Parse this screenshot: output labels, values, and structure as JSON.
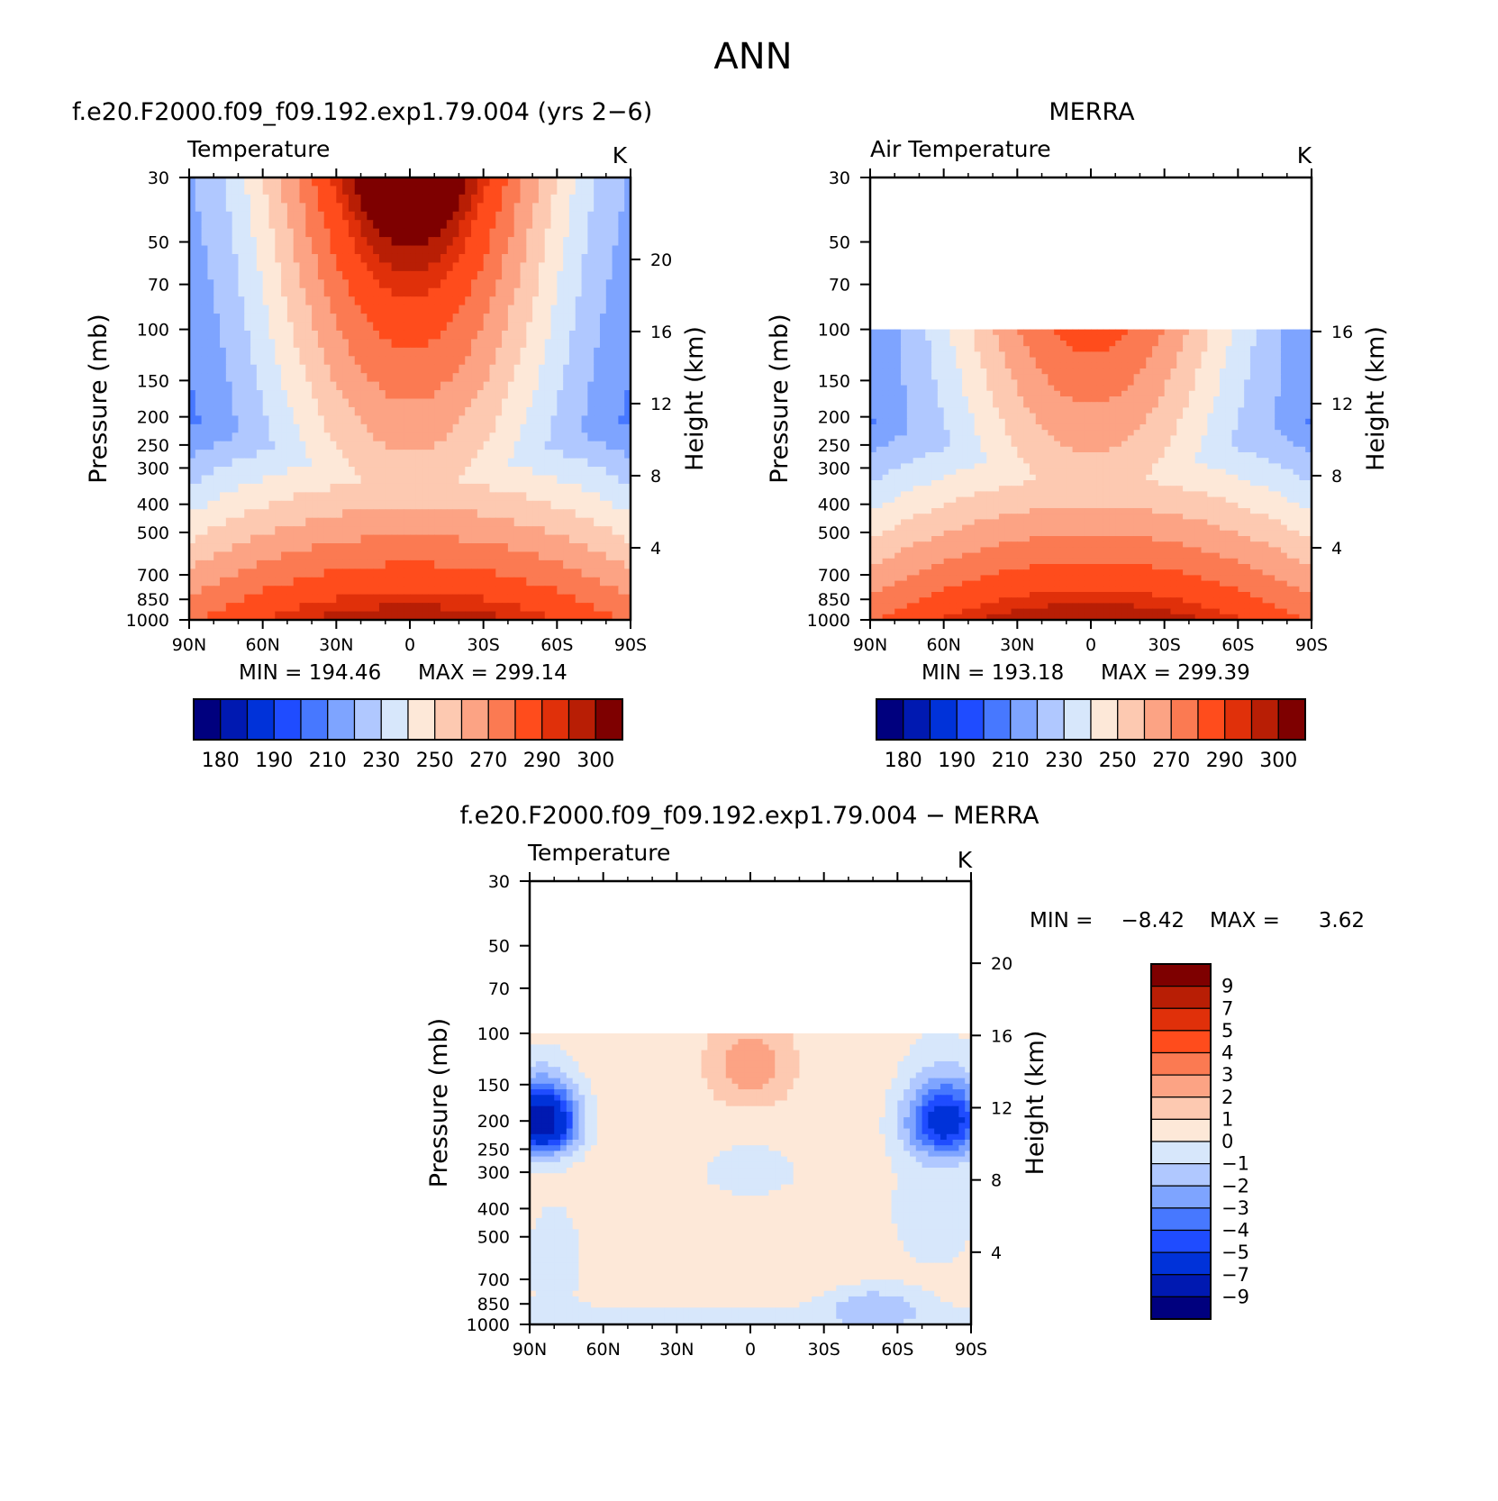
{
  "figure": {
    "title": "ANN"
  },
  "colors": {
    "temp_levels": [
      "#00007e",
      "#0019b1",
      "#0032d9",
      "#1f4cff",
      "#4778ff",
      "#7ea4ff",
      "#b0c8ff",
      "#d7e7fb",
      "#fde8d8",
      "#fdc9b1",
      "#fca384",
      "#fb7a52",
      "#ff4c1c",
      "#e0300a",
      "#b81e05",
      "#7e0000"
    ],
    "diff_levels": [
      "#00007e",
      "#0019b1",
      "#0032d9",
      "#1f4cff",
      "#4778ff",
      "#7ea4ff",
      "#b0c8ff",
      "#d7e7fb",
      "#fde8d8",
      "#fdc9b1",
      "#fca384",
      "#fb7a52",
      "#ff4c1c",
      "#e0300a",
      "#b81e05",
      "#7e0000"
    ]
  },
  "chart_data": [
    {
      "type": "heatmap",
      "panel_title": "f.e20.F2000.f09_f09.192.exp1.79.004 (yrs 2−6)",
      "variable": "Temperature",
      "units": "K",
      "ylabel": "Pressure (mb)",
      "ylabel_right": "Height (km)",
      "x_tick_labels": [
        "90N",
        "60N",
        "30N",
        "0",
        "30S",
        "60S",
        "90S"
      ],
      "y_tick_labels": [
        "30",
        "50",
        "70",
        "100",
        "150",
        "200",
        "250",
        "300",
        "400",
        "500",
        "700",
        "850",
        "1000"
      ],
      "right_tick_labels": [
        "20",
        "16",
        "12",
        "8",
        "4"
      ],
      "x_range": [
        90,
        -90
      ],
      "y_range_mb": [
        1000,
        30
      ],
      "log_y": true,
      "min_label": "MIN =  194.46",
      "max_label": "MAX =  299.14",
      "min": 194.46,
      "max": 299.14,
      "colorbar_labels": [
        "180",
        "190",
        "210",
        "230",
        "250",
        "270",
        "290",
        "300"
      ]
    },
    {
      "type": "heatmap",
      "panel_title": "MERRA",
      "variable": "Air Temperature",
      "units": "K",
      "ylabel": "Pressure (mb)",
      "ylabel_right": "Height (km)",
      "x_tick_labels": [
        "90N",
        "60N",
        "30N",
        "0",
        "30S",
        "60S",
        "90S"
      ],
      "y_tick_labels": [
        "30",
        "50",
        "70",
        "100",
        "150",
        "200",
        "250",
        "300",
        "400",
        "500",
        "700",
        "850",
        "1000"
      ],
      "right_tick_labels": [
        "16",
        "12",
        "8",
        "4"
      ],
      "x_range": [
        90,
        -90
      ],
      "y_range_mb": [
        1000,
        30
      ],
      "data_top_mb": 100,
      "log_y": true,
      "min_label": "MIN =  193.18",
      "max_label": "MAX =  299.39",
      "min": 193.18,
      "max": 299.39,
      "colorbar_labels": [
        "180",
        "190",
        "210",
        "230",
        "250",
        "270",
        "290",
        "300"
      ]
    },
    {
      "type": "heatmap",
      "panel_title": "f.e20.F2000.f09_f09.192.exp1.79.004 − MERRA",
      "variable": "Temperature",
      "units": "K",
      "ylabel": "Pressure (mb)",
      "ylabel_right": "Height (km)",
      "x_tick_labels": [
        "90N",
        "60N",
        "30N",
        "0",
        "30S",
        "60S",
        "90S"
      ],
      "y_tick_labels": [
        "30",
        "50",
        "70",
        "100",
        "150",
        "200",
        "250",
        "300",
        "400",
        "500",
        "700",
        "850",
        "1000"
      ],
      "right_tick_labels": [
        "20",
        "16",
        "12",
        "8",
        "4"
      ],
      "x_range": [
        90,
        -90
      ],
      "y_range_mb": [
        1000,
        30
      ],
      "data_top_mb": 100,
      "log_y": true,
      "min_text": "MIN =",
      "min_value": "−8.42",
      "max_text": "MAX =",
      "max_value": "3.62",
      "min": -8.42,
      "max": 3.62,
      "colorbar_labels": [
        "9",
        "7",
        "5",
        "4",
        "3",
        "2",
        "1",
        "0",
        "−1",
        "−2",
        "−3",
        "−4",
        "−5",
        "−7",
        "−9"
      ]
    }
  ]
}
